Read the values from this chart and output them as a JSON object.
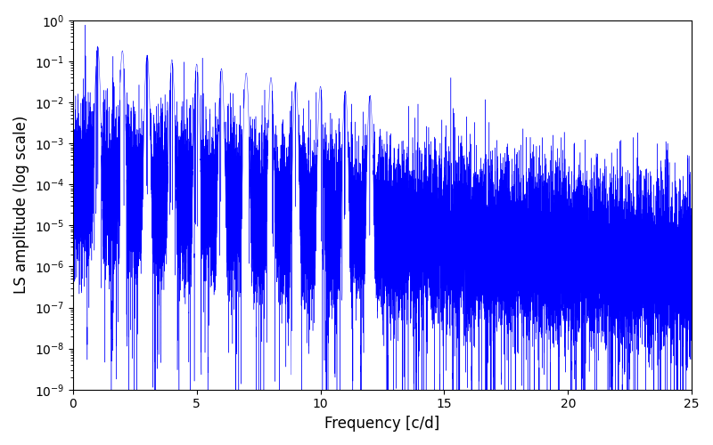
{
  "xlabel": "Frequency [c/d]",
  "ylabel": "LS amplitude (log scale)",
  "xlim": [
    0,
    25
  ],
  "ylim": [
    1e-09,
    1.0
  ],
  "line_color": "blue",
  "line_width": 0.5,
  "background_color": "#ffffff",
  "seed": 12345,
  "n_points": 20000,
  "freq_max": 25.0,
  "xticks": [
    0,
    5,
    10,
    15,
    20,
    25
  ]
}
